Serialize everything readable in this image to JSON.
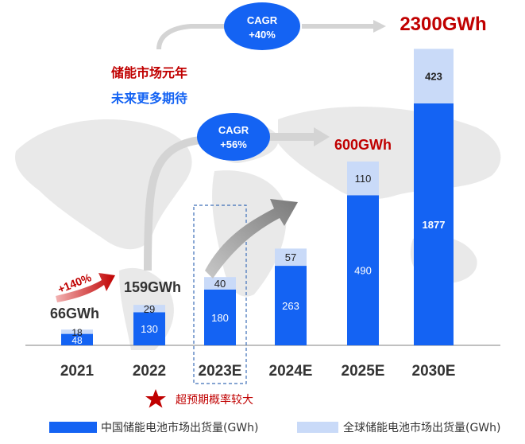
{
  "chart_data": {
    "type": "bar",
    "stacked": true,
    "categories": [
      "2021",
      "2022",
      "2023E",
      "2024E",
      "2025E",
      "2030E"
    ],
    "series": [
      {
        "name": "中国储能电池市场出货量(GWh)",
        "color": "#1463F3",
        "values": [
          48,
          130,
          180,
          263,
          490,
          1877
        ]
      },
      {
        "name": "全球储能电池市场出货量(GWh)",
        "color": "#C9DAF8",
        "values": [
          18,
          29,
          40,
          57,
          110,
          423
        ]
      }
    ],
    "totals_labels": {
      "2021": "66GWh",
      "2022": "159GWh",
      "2025E": "600GWh",
      "2030E": "2300GWh"
    },
    "annotations": {
      "growth_2022": "+140%",
      "cagr_near": {
        "line1": "CAGR",
        "line2": "+56%"
      },
      "cagr_far": {
        "line1": "CAGR",
        "line2": "+40%"
      },
      "headline1": "储能市场元年",
      "headline2": "未来更多期待",
      "footnote": "超预期概率较大",
      "dashed_highlight": "2023E"
    },
    "colors": {
      "china": "#1463F3",
      "global_extra": "#C9DAF8",
      "accent_red": "#C00000",
      "headline_blue": "#1463F3",
      "arrow_gray": "#9E9E9E",
      "cagr_bubble": "#1463F3"
    }
  },
  "legend": {
    "china_label": "中国储能电池市场出货量(GWh)",
    "global_label": "全球储能电池市场出货量(GWh)"
  }
}
